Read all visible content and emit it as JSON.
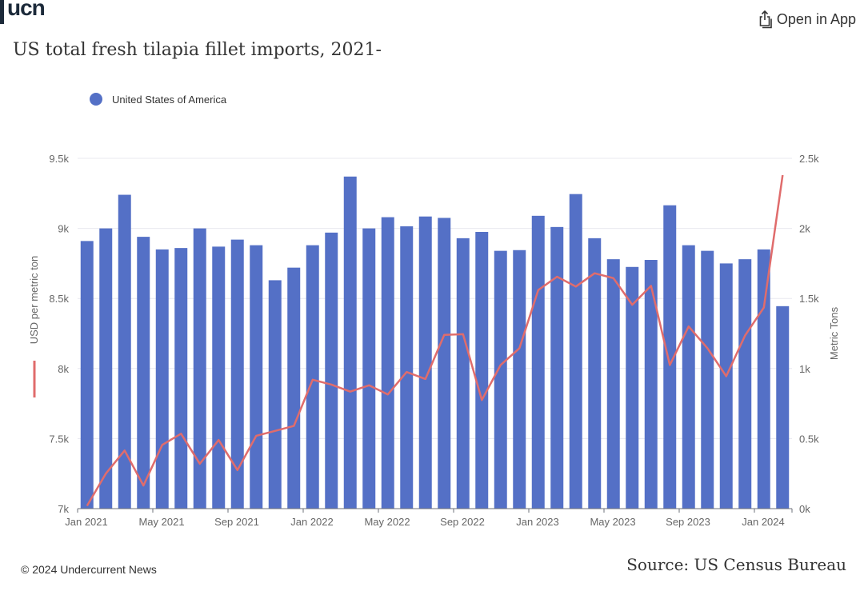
{
  "header": {
    "logo": "ucn",
    "open_in_app": "Open in App",
    "title": "US total fresh tilapia fillet imports, 2021-"
  },
  "legend": {
    "label": "United States of America",
    "color": "#5470c6"
  },
  "colors": {
    "bar": "#5470c6",
    "line": "#e06c6c",
    "grid": "#e8e8ef"
  },
  "footer": {
    "copyright": "© 2024 Undercurrent News",
    "source": "Source: US Census Bureau"
  },
  "chart_data": {
    "type": "bar",
    "title": "US total fresh tilapia fillet imports, 2021-",
    "xlabel": "",
    "ylabel": "USD per metric ton",
    "y2label": "Metric Tons",
    "ylim": [
      7000,
      9500
    ],
    "y2lim": [
      0,
      2500
    ],
    "yticks": [
      "7k",
      "7.5k",
      "8k",
      "8.5k",
      "9k",
      "9.5k"
    ],
    "y2ticks": [
      "0k",
      "0.5k",
      "1k",
      "1.5k",
      "2k",
      "2.5k"
    ],
    "xticks": [
      "Jan 2021",
      "May 2021",
      "Sep 2021",
      "Jan 2022",
      "May 2022",
      "Sep 2022",
      "Jan 2023",
      "May 2023",
      "Sep 2023",
      "Jan 2024"
    ],
    "grid": true,
    "legend_position": "top-left",
    "categories": [
      "Jan 2021",
      "Feb 2021",
      "Mar 2021",
      "Apr 2021",
      "May 2021",
      "Jun 2021",
      "Jul 2021",
      "Aug 2021",
      "Sep 2021",
      "Oct 2021",
      "Nov 2021",
      "Dec 2021",
      "Jan 2022",
      "Feb 2022",
      "Mar 2022",
      "Apr 2022",
      "May 2022",
      "Jun 2022",
      "Jul 2022",
      "Aug 2022",
      "Sep 2022",
      "Oct 2022",
      "Nov 2022",
      "Dec 2022",
      "Jan 2023",
      "Feb 2023",
      "Mar 2023",
      "Apr 2023",
      "May 2023",
      "Jun 2023",
      "Jul 2023",
      "Aug 2023",
      "Sep 2023",
      "Oct 2023",
      "Nov 2023",
      "Dec 2023",
      "Jan 2024",
      "Feb 2024"
    ],
    "series": [
      {
        "name": "United States of America (USD per metric ton)",
        "type": "bar",
        "axis": "left",
        "values": [
          8910,
          9000,
          9240,
          8940,
          8850,
          8860,
          9000,
          8870,
          8920,
          8880,
          8630,
          8720,
          8880,
          8970,
          9370,
          9000,
          9080,
          9015,
          9085,
          9075,
          8930,
          8975,
          8840,
          8845,
          9090,
          9010,
          9245,
          8930,
          8780,
          8725,
          8775,
          9165,
          8880,
          8840,
          8750,
          8780,
          8850,
          8445
        ]
      },
      {
        "name": "Metric Tons",
        "type": "line",
        "axis": "right",
        "values": [
          20,
          250,
          415,
          165,
          455,
          535,
          320,
          490,
          275,
          520,
          555,
          590,
          920,
          885,
          835,
          880,
          815,
          975,
          925,
          1240,
          1245,
          775,
          1025,
          1145,
          1560,
          1655,
          1585,
          1680,
          1645,
          1455,
          1590,
          1025,
          1300,
          1145,
          945,
          1235,
          1435,
          2380
        ]
      }
    ]
  }
}
